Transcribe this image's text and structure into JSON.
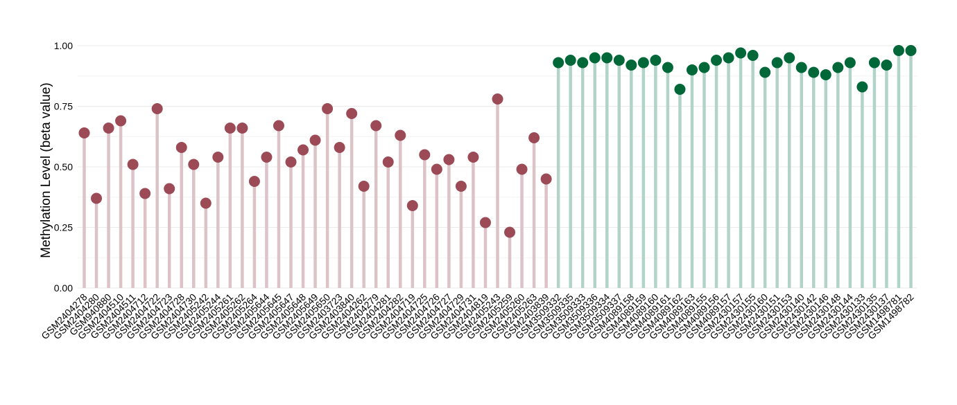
{
  "chart_data": {
    "type": "lollipop",
    "title": "",
    "xlabel": "",
    "ylabel": "Methylation Level (beta value)",
    "ylim": [
      0,
      1
    ],
    "yticks": [
      "0.00",
      "0.25",
      "0.50",
      "0.75",
      "1.00"
    ],
    "grid": true,
    "legend": "none",
    "colors": {
      "group_a_point": "#9b4a56",
      "group_a_stem": "#dcc3c8",
      "group_b_point": "#006838",
      "group_b_stem": "#b2d3c8",
      "grid": "#ebebeb",
      "axis_text": "#000000"
    },
    "categories": [
      "GSM2404278",
      "GSM2404280",
      "GSM940880",
      "GSM2404510",
      "GSM2404511",
      "GSM2404712",
      "GSM2404722",
      "GSM2404723",
      "GSM2404728",
      "GSM2404730",
      "GSM2405242",
      "GSM2405244",
      "GSM2405261",
      "GSM2405262",
      "GSM2405264",
      "GSM2405644",
      "GSM2405645",
      "GSM2405647",
      "GSM2405648",
      "GSM2405649",
      "GSM2405650",
      "GSM2403723",
      "GSM2403840",
      "GSM2404262",
      "GSM2404279",
      "GSM2404281",
      "GSM2404282",
      "GSM2404719",
      "GSM2404725",
      "GSM2404726",
      "GSM2404727",
      "GSM2404729",
      "GSM2404731",
      "GSM2404819",
      "GSM2405243",
      "GSM2405259",
      "GSM2405260",
      "GSM2405263",
      "GSM2403839",
      "GSM3509332",
      "GSM3509335",
      "GSM3509333",
      "GSM3509336",
      "GSM3509334",
      "GSM3509337",
      "GSM4089158",
      "GSM4089159",
      "GSM4089160",
      "GSM4089161",
      "GSM4089162",
      "GSM4089163",
      "GSM4089155",
      "GSM4089156",
      "GSM4089157",
      "GSM2430157",
      "GSM2430155",
      "GSM2430160",
      "GSM2430151",
      "GSM2430153",
      "GSM2430140",
      "GSM2430142",
      "GSM2430146",
      "GSM2430148",
      "GSM2430144",
      "GSM2430133",
      "GSM2430135",
      "GSM2430137",
      "GSM1498781",
      "GSM1498782"
    ],
    "groups": [
      "a",
      "a",
      "a",
      "a",
      "a",
      "a",
      "a",
      "a",
      "a",
      "a",
      "a",
      "a",
      "a",
      "a",
      "a",
      "a",
      "a",
      "a",
      "a",
      "a",
      "a",
      "a",
      "a",
      "a",
      "a",
      "a",
      "a",
      "a",
      "a",
      "a",
      "a",
      "a",
      "a",
      "a",
      "a",
      "a",
      "a",
      "a",
      "a",
      "b",
      "b",
      "b",
      "b",
      "b",
      "b",
      "b",
      "b",
      "b",
      "b",
      "b",
      "b",
      "b",
      "b",
      "b",
      "b",
      "b",
      "b",
      "b",
      "b",
      "b",
      "b",
      "b",
      "b",
      "b",
      "b",
      "b",
      "b",
      "b",
      "b"
    ],
    "values": [
      0.64,
      0.37,
      0.66,
      0.69,
      0.51,
      0.39,
      0.74,
      0.41,
      0.58,
      0.51,
      0.35,
      0.54,
      0.66,
      0.66,
      0.44,
      0.54,
      0.67,
      0.52,
      0.57,
      0.61,
      0.74,
      0.58,
      0.72,
      0.42,
      0.67,
      0.52,
      0.63,
      0.34,
      0.55,
      0.49,
      0.53,
      0.42,
      0.54,
      0.27,
      0.78,
      0.23,
      0.49,
      0.62,
      0.45,
      0.93,
      0.94,
      0.93,
      0.95,
      0.95,
      0.94,
      0.92,
      0.93,
      0.94,
      0.91,
      0.82,
      0.9,
      0.91,
      0.94,
      0.95,
      0.97,
      0.96,
      0.89,
      0.93,
      0.95,
      0.91,
      0.89,
      0.88,
      0.91,
      0.93,
      0.83,
      0.93,
      0.92,
      0.98,
      0.98
    ]
  }
}
